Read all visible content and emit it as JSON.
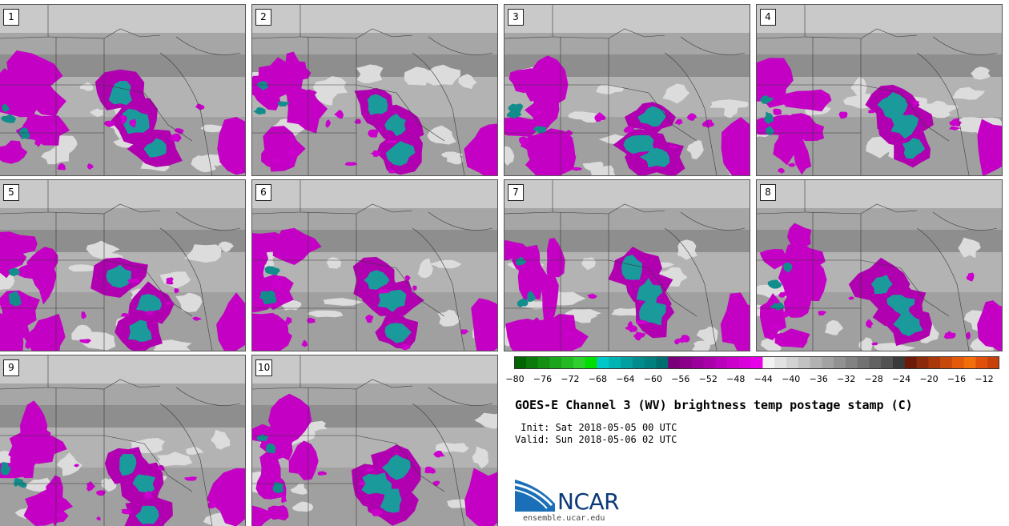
{
  "panels": [
    {
      "label": "1"
    },
    {
      "label": "2"
    },
    {
      "label": "3"
    },
    {
      "label": "4"
    },
    {
      "label": "5"
    },
    {
      "label": "6"
    },
    {
      "label": "7"
    },
    {
      "label": "8"
    },
    {
      "label": "9"
    },
    {
      "label": "10"
    }
  ],
  "colorbar": {
    "ticks": [
      "−80",
      "−76",
      "−72",
      "−68",
      "−64",
      "−60",
      "−56",
      "−52",
      "−48",
      "−44",
      "−40",
      "−36",
      "−32",
      "−28",
      "−24",
      "−20",
      "−16",
      "−12"
    ],
    "colors": [
      "#006400",
      "#0a7a0a",
      "#138f13",
      "#1ca51c",
      "#24ba24",
      "#2dd02d",
      "#00dd00",
      "#00c8c8",
      "#00b4b4",
      "#00a0a0",
      "#008c8c",
      "#007f7f",
      "#006e6e",
      "#7a007a",
      "#8a008a",
      "#9a009a",
      "#aa00aa",
      "#ba00ba",
      "#ca00ca",
      "#da00da",
      "#e800e8",
      "#f2f2f2",
      "#e2e2e2",
      "#d2d2d2",
      "#c2c2c2",
      "#b2b2b2",
      "#a2a2a2",
      "#929292",
      "#828282",
      "#727272",
      "#626262",
      "#525252",
      "#3a3a3a",
      "#6e1a0a",
      "#8a2a0a",
      "#a8380a",
      "#c84a0a",
      "#e25a0a",
      "#f26e0a",
      "#e0500a",
      "#c8400a"
    ]
  },
  "title": "GOES-E Channel 3 (WV) brightness temp postage stamp (C)",
  "init": " Init: Sat 2018-05-05 00 UTC",
  "valid": "Valid: Sun 2018-05-06 02 UTC",
  "logo": {
    "text": "NCAR",
    "url": "ensemble.ucar.edu"
  }
}
